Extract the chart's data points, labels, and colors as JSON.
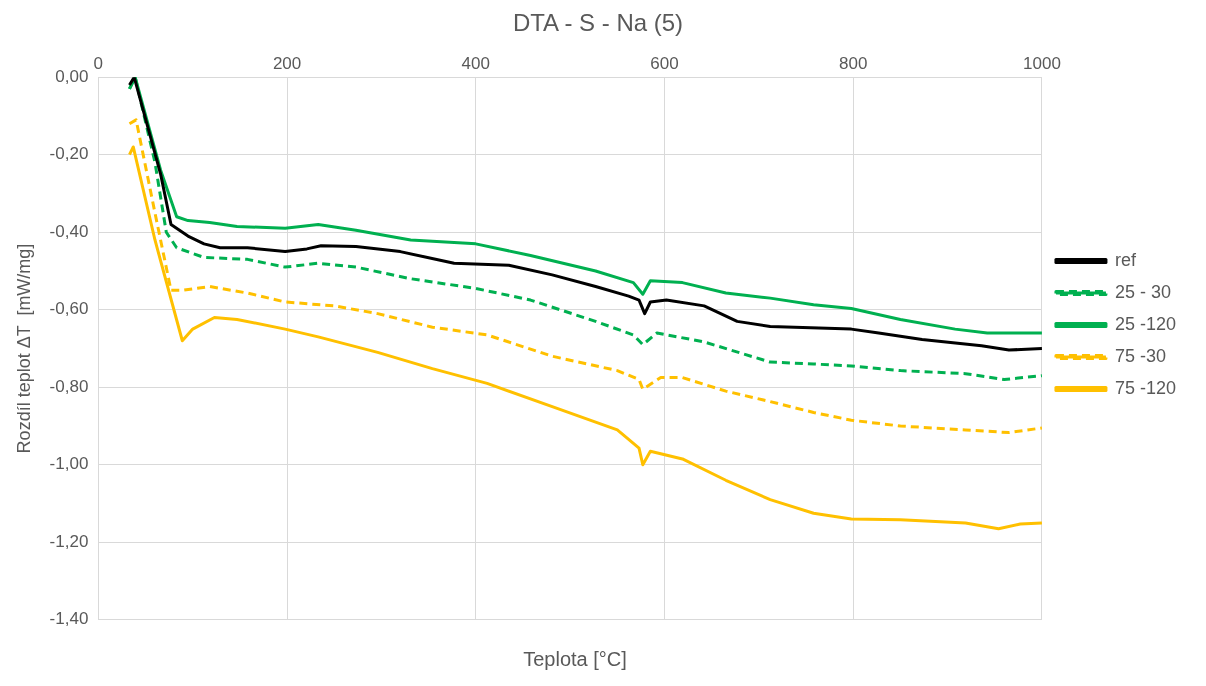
{
  "chart_data": {
    "type": "line",
    "title": "DTA - S - Na (5)",
    "xlabel": "Teplota [°C]",
    "ylabel": "Rozdíl teplot ΔT  [mW/mg]",
    "xlim": [
      0,
      1000
    ],
    "xticks": [
      0,
      200,
      400,
      600,
      800,
      1000
    ],
    "ylim": [
      -1.4,
      0
    ],
    "yticks": [
      {
        "value": 0,
        "label": "0,00"
      },
      {
        "value": -0.2,
        "label": "-0,20"
      },
      {
        "value": -0.4,
        "label": "-0,40"
      },
      {
        "value": -0.6,
        "label": "-0,60"
      },
      {
        "value": -0.8,
        "label": "-0,80"
      },
      {
        "value": -1,
        "label": "-1,00"
      },
      {
        "value": -1.2,
        "label": "-1,20"
      },
      {
        "value": -1.4,
        "label": "-1,40"
      }
    ],
    "grid": true,
    "legend": "right",
    "marker": "none",
    "series": [
      {
        "name": "ref",
        "color": "#000000",
        "line_style": "solid",
        "x": [
          33,
          38,
          66,
          77,
          95,
          112,
          129,
          158,
          198,
          221,
          236,
          273,
          320,
          377,
          435,
          481,
          527,
          562,
          573,
          579,
          585,
          602,
          642,
          677,
          712,
          798,
          827,
          873,
          936,
          965,
          1000
        ],
        "values": [
          -0.02,
          0,
          -0.25,
          -0.38,
          -0.41,
          -0.43,
          -0.44,
          -0.44,
          -0.45,
          -0.443,
          -0.435,
          -0.437,
          -0.45,
          -0.48,
          -0.485,
          -0.51,
          -0.54,
          -0.565,
          -0.575,
          -0.61,
          -0.58,
          -0.575,
          -0.59,
          -0.63,
          -0.643,
          -0.65,
          -0.66,
          -0.677,
          -0.693,
          -0.704,
          -0.7
        ]
      },
      {
        "name": "25 - 30",
        "color": "#00b050",
        "line_style": "dashed",
        "x": [
          33,
          39,
          60,
          72,
          83,
          112,
          158,
          198,
          233,
          273,
          331,
          400,
          458,
          527,
          567,
          577,
          592,
          642,
          712,
          758,
          798,
          850,
          919,
          960,
          1000
        ],
        "values": [
          -0.03,
          0,
          -0.22,
          -0.4,
          -0.44,
          -0.465,
          -0.47,
          -0.49,
          -0.48,
          -0.49,
          -0.52,
          -0.545,
          -0.575,
          -0.63,
          -0.665,
          -0.69,
          -0.66,
          -0.683,
          -0.735,
          -0.74,
          -0.745,
          -0.757,
          -0.765,
          -0.78,
          -0.77
        ]
      },
      {
        "name": "25 -120",
        "color": "#00b050",
        "line_style": "solid",
        "x": [
          33,
          39,
          66,
          83,
          95,
          118,
          147,
          198,
          233,
          273,
          331,
          400,
          458,
          527,
          567,
          577,
          585,
          619,
          665,
          712,
          758,
          798,
          850,
          908,
          942,
          1000
        ],
        "values": [
          -0.03,
          0,
          -0.24,
          -0.36,
          -0.37,
          -0.375,
          -0.385,
          -0.39,
          -0.38,
          -0.395,
          -0.42,
          -0.43,
          -0.46,
          -0.5,
          -0.53,
          -0.56,
          -0.525,
          -0.53,
          -0.557,
          -0.57,
          -0.587,
          -0.597,
          -0.625,
          -0.65,
          -0.66,
          -0.66
        ]
      },
      {
        "name": "75 -30",
        "color": "#ffc000",
        "line_style": "dashed",
        "x": [
          33,
          40,
          60,
          77,
          89,
          118,
          158,
          198,
          250,
          296,
          354,
          412,
          481,
          550,
          573,
          577,
          596,
          619,
          665,
          712,
          758,
          798,
          850,
          919,
          965,
          1000
        ],
        "values": [
          -0.12,
          -0.11,
          -0.35,
          -0.55,
          -0.55,
          -0.54,
          -0.557,
          -0.58,
          -0.59,
          -0.61,
          -0.645,
          -0.665,
          -0.72,
          -0.757,
          -0.78,
          -0.805,
          -0.775,
          -0.775,
          -0.81,
          -0.837,
          -0.865,
          -0.885,
          -0.9,
          -0.91,
          -0.917,
          -0.905
        ]
      },
      {
        "name": "75 -120",
        "color": "#ffc000",
        "line_style": "solid",
        "x": [
          33,
          37,
          60,
          89,
          100,
          123,
          147,
          198,
          233,
          296,
          354,
          412,
          481,
          550,
          573,
          577,
          585,
          619,
          665,
          712,
          758,
          798,
          850,
          919,
          954,
          977,
          1000
        ],
        "values": [
          -0.2,
          -0.18,
          -0.42,
          -0.68,
          -0.65,
          -0.62,
          -0.625,
          -0.65,
          -0.67,
          -0.71,
          -0.752,
          -0.79,
          -0.85,
          -0.91,
          -0.957,
          -1,
          -0.965,
          -0.985,
          -1.04,
          -1.09,
          -1.125,
          -1.14,
          -1.142,
          -1.15,
          -1.165,
          -1.153,
          -1.15
        ]
      }
    ]
  }
}
